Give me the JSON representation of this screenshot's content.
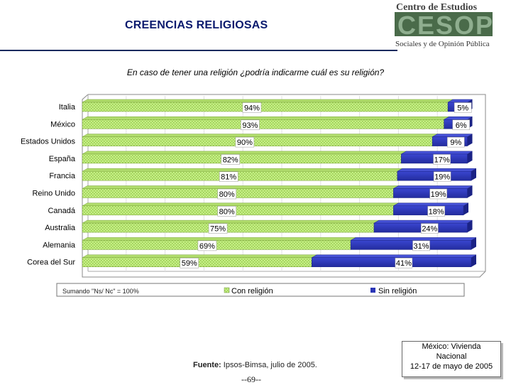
{
  "header": {
    "title": "CREENCIAS RELIGIOSAS",
    "logo_line1": "Centro de Estudios",
    "logo_big": "CESOP",
    "logo_line2": "Sociales y de Opinión Pública"
  },
  "question": "En caso de tener una religión ¿podría indicarme cuál es su religión?",
  "note": "Sumando \"Ns/ Nc\" = 100%",
  "footer": {
    "source_label": "Fuente:",
    "source_text": "Ipsos-Bimsa, julio de 2005.",
    "page_number": "--69--",
    "info_line1": "México: Vivienda",
    "info_line2": "Nacional",
    "info_line3": "12-17 de mayo de 2005"
  },
  "colors": {
    "con_religion": "#c4ee84",
    "con_religion_pattern": "#9ccf4f",
    "sin_religion": "#2b36b6",
    "sin_religion_dark": "#1a2285"
  },
  "chart_data": {
    "type": "bar",
    "orientation": "horizontal-stacked",
    "categories": [
      "Italia",
      "México",
      "Estados Unidos",
      "España",
      "Francia",
      "Reino Unido",
      "Canadá",
      "Australia",
      "Alemania",
      "Corea del Sur"
    ],
    "series": [
      {
        "name": "Con religión",
        "values": [
          94,
          93,
          90,
          82,
          81,
          80,
          80,
          75,
          69,
          59
        ],
        "labels": [
          "94%",
          "93%",
          "90%",
          "82%",
          "81%",
          "80%",
          "80%",
          "75%",
          "69%",
          "59%"
        ]
      },
      {
        "name": "Sin religión",
        "values": [
          5,
          6,
          9,
          17,
          19,
          19,
          18,
          24,
          31,
          41
        ],
        "labels": [
          "5%",
          "6%",
          "9%",
          "17%",
          "19%",
          "19%",
          "18%",
          "24%",
          "31%",
          "41%"
        ]
      }
    ],
    "xlim": [
      0,
      100
    ],
    "legend": "bottom",
    "grid": true
  }
}
